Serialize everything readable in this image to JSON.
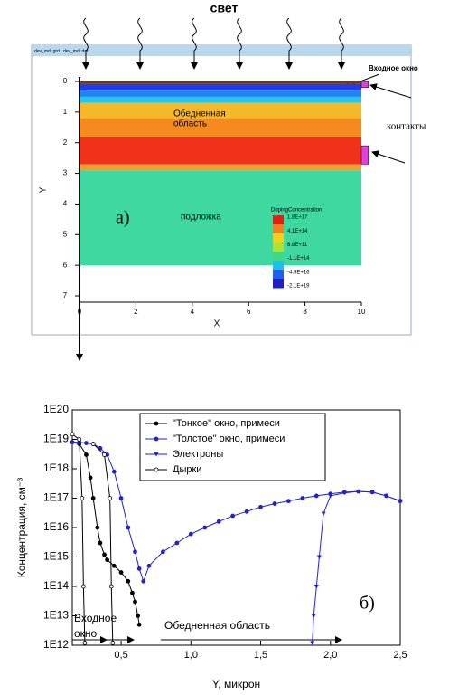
{
  "figure_a": {
    "title": "свет",
    "window_title": "dev_mdr.grd : dev_mdr.dat",
    "xlabel": "X",
    "ylabel": "Y",
    "xlim": [
      0,
      10
    ],
    "ylim": [
      0,
      7
    ],
    "xticks": [
      0,
      2,
      4,
      6,
      8,
      10
    ],
    "yticks": [
      0,
      1,
      2,
      3,
      4,
      5,
      6,
      7
    ],
    "layers": [
      {
        "y0": 0,
        "y1": 0.08,
        "color": "#6b3a14"
      },
      {
        "y0": 0.08,
        "y1": 0.3,
        "color": "#1f3cf0"
      },
      {
        "y0": 0.3,
        "y1": 0.5,
        "color": "#1c86f2"
      },
      {
        "y0": 0.5,
        "y1": 0.7,
        "color": "#2ac6e6"
      },
      {
        "y0": 0.7,
        "y1": 1.2,
        "color": "#f5b828"
      },
      {
        "y0": 1.2,
        "y1": 1.8,
        "color": "#f58a1e"
      },
      {
        "y0": 1.8,
        "y1": 2.7,
        "color": "#f0321a"
      },
      {
        "y0": 2.7,
        "y1": 2.9,
        "color": "#f4a030"
      },
      {
        "y0": 2.9,
        "y1": 6,
        "color": "#3ed8a0"
      }
    ],
    "contacts": [
      {
        "x0": 10,
        "x1": 10.25,
        "y0": 0,
        "y1": 0.2,
        "color": "#e040e0"
      },
      {
        "x0": 10,
        "x1": 10.25,
        "y0": 2.1,
        "y1": 2.7,
        "color": "#e040e0"
      }
    ],
    "labels": {
      "window": "Входное окно",
      "contacts": "контакты",
      "depletion": [
        "Обедненная",
        "область"
      ],
      "substrate": "подложка",
      "panel": "а)"
    },
    "colorbar": {
      "title": "DopingConcentration",
      "labels": [
        "1.8E+17",
        "4.1E+14",
        "6.8E+11",
        "-1.1E+14",
        "-4.9E+16",
        "-2.1E+19"
      ],
      "colors": [
        "#e02010",
        "#f08020",
        "#f0d020",
        "#b0e030",
        "#40d880",
        "#20c0e0",
        "#2060f0",
        "#2020c0"
      ]
    }
  },
  "chart_data": {
    "type": "line",
    "log_y": true,
    "xlabel": "Y, микрон",
    "ylabel": "Концентрация, см⁻³",
    "xlim": [
      0.15,
      2.5
    ],
    "ylim": [
      1000000000000.0,
      1e+20
    ],
    "xticks": [
      {
        "value": 0.5,
        "label": "0,5"
      },
      {
        "value": 1.0,
        "label": "1,0"
      },
      {
        "value": 1.5,
        "label": "1,5"
      },
      {
        "value": 2.0,
        "label": "2,0"
      },
      {
        "value": 2.5,
        "label": "2,5"
      }
    ],
    "yticks": [
      {
        "value": 1000000000000.0,
        "label": "1E12"
      },
      {
        "value": 10000000000000.0,
        "label": "1E13"
      },
      {
        "value": 100000000000000.0,
        "label": "1E14"
      },
      {
        "value": 1000000000000000.0,
        "label": "1E15"
      },
      {
        "value": 1e+16,
        "label": "1E16"
      },
      {
        "value": 1e+17,
        "label": "1E17"
      },
      {
        "value": 1e+18,
        "label": "1E18"
      },
      {
        "value": 1e+19,
        "label": "1E19"
      },
      {
        "value": 1e+20,
        "label": "1E20"
      }
    ],
    "legend": "upper right",
    "series": [
      {
        "name": "\"Тонкое\" окно, примеси",
        "color": "#000000",
        "marker": "circle",
        "x": [
          0.15,
          0.2,
          0.25,
          0.28,
          0.3,
          0.33,
          0.35,
          0.38,
          0.4,
          0.45,
          0.5,
          0.55,
          0.58,
          0.6,
          0.62,
          0.63
        ],
        "values": [
          8e+18,
          7e+18,
          3e+18,
          5e+17,
          1e+17,
          1e+16,
          3000000000000000.0,
          1200000000000000.0,
          800000000000000.0,
          500000000000000.0,
          300000000000000.0,
          150000000000000.0,
          60000000000000.0,
          30000000000000.0,
          10000000000000.0,
          5000000000000.0
        ]
      },
      {
        "name": "\"Толстое\" окно, примеси",
        "color": "#2222cc",
        "marker": "circle",
        "x": [
          0.15,
          0.2,
          0.25,
          0.3,
          0.35,
          0.4,
          0.45,
          0.5,
          0.55,
          0.6,
          0.63,
          0.66,
          0.7,
          0.8,
          0.9,
          1.0,
          1.1,
          1.2,
          1.3,
          1.4,
          1.5,
          1.6,
          1.7,
          1.8,
          1.9,
          2.0,
          2.1,
          2.2,
          2.3,
          2.4,
          2.5
        ],
        "values": [
          8e+18,
          8e+18,
          7.5e+18,
          7e+18,
          5e+18,
          3e+18,
          8e+17,
          1e+17,
          1e+16,
          1500000000000000.0,
          400000000000000.0,
          150000000000000.0,
          500000000000000.0,
          1500000000000000.0,
          3000000000000000.0,
          6000000000000000.0,
          1e+16,
          1.6e+16,
          2.5e+16,
          3.5e+16,
          5e+16,
          6.5e+16,
          8e+16,
          1e+17,
          1.2e+17,
          1.4e+17,
          1.6e+17,
          1.7e+17,
          1.6e+17,
          1.2e+17,
          8e+16
        ]
      },
      {
        "name": "Электроны",
        "color": "#2222cc",
        "marker": "triangle",
        "x": [
          1.87,
          1.88,
          1.9,
          1.92,
          1.95,
          2.0,
          2.1,
          2.2,
          2.3,
          2.4,
          2.5
        ],
        "values": [
          1200000000000.0,
          10000000000000.0,
          100000000000000.0,
          1000000000000000.0,
          3e+16,
          1.2e+17,
          1.5e+17,
          1.7e+17,
          1.6e+17,
          1.2e+17,
          8e+16
        ]
      },
      {
        "name": "Дырки",
        "color": "#000000",
        "marker": "circle-open",
        "x": [
          0.15,
          0.2,
          0.22,
          0.23,
          0.24,
          0.25,
          0.3,
          0.38,
          0.42,
          0.43,
          0.44
        ],
        "values": [
          1.5e+19,
          1e+19,
          1e+17,
          100000000000000.0,
          1200000000000.0,
          null,
          7e+18,
          3e+18,
          1e+17,
          100000000000000.0,
          1200000000000.0
        ]
      }
    ],
    "annotations": {
      "window": [
        "Входное",
        "окно"
      ],
      "depletion": "Обедненная область",
      "panel": "б)"
    }
  }
}
